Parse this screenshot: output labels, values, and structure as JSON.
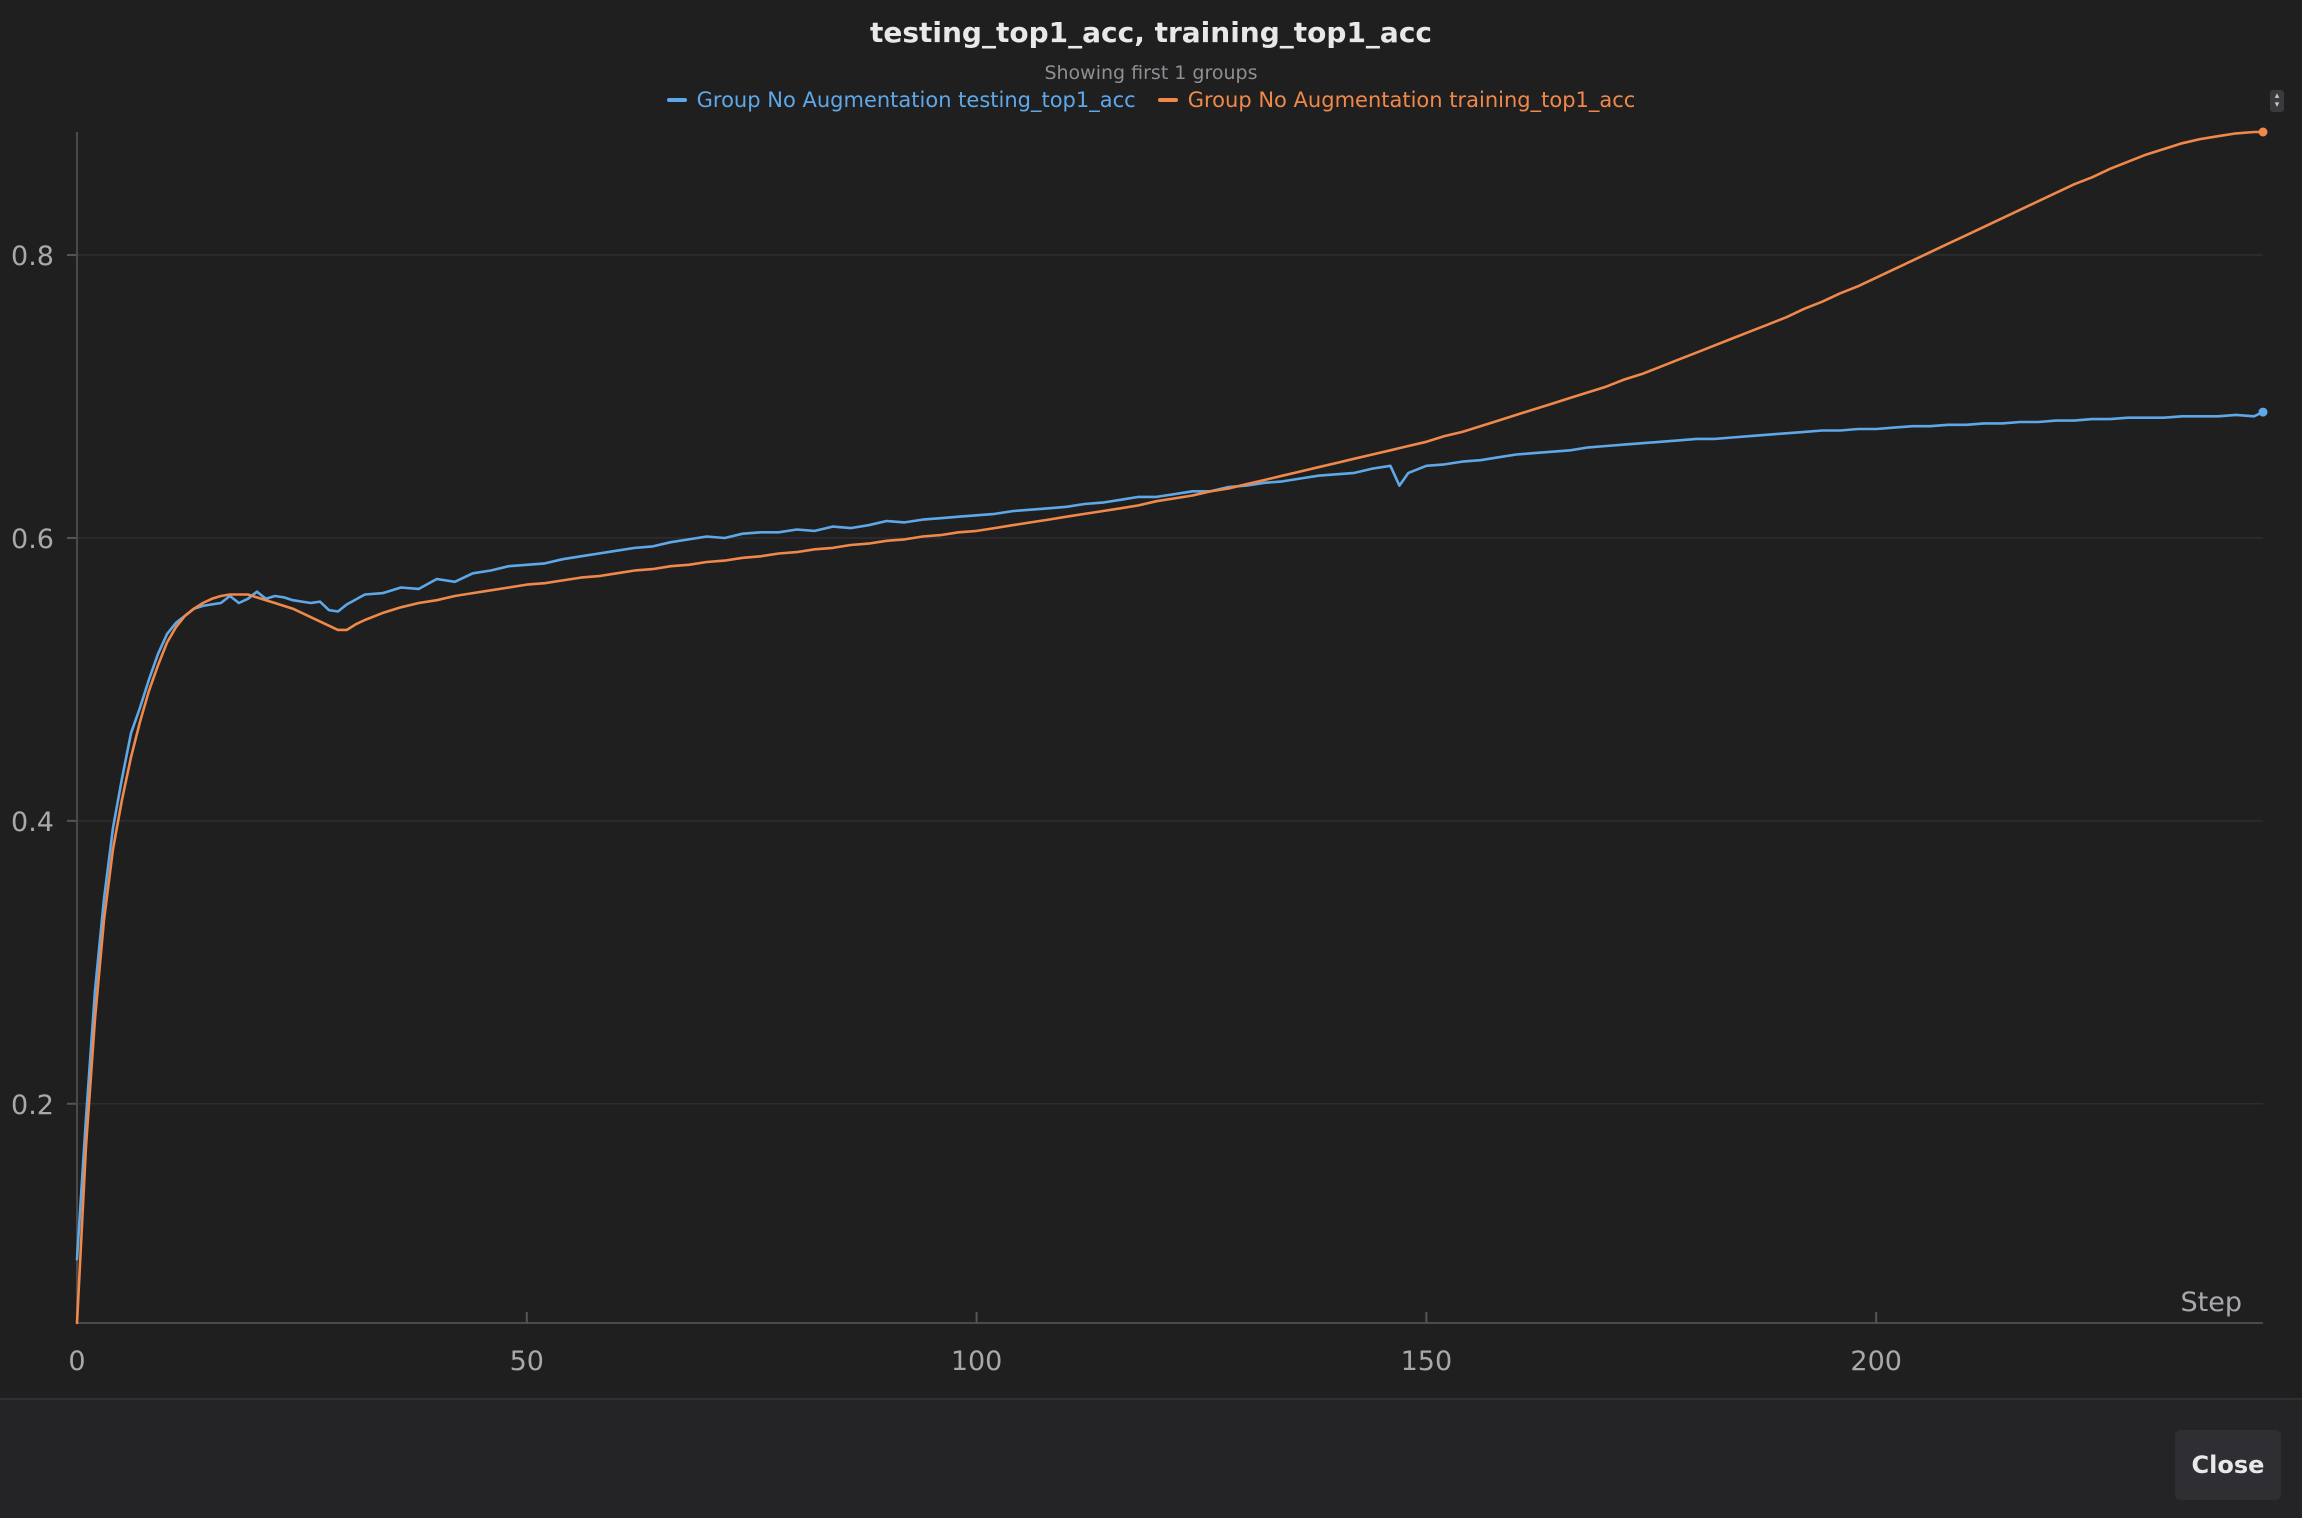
{
  "chart_data": {
    "type": "line",
    "title": "testing_top1_acc, training_top1_acc",
    "subtitle": "Showing first 1 groups",
    "xlabel": "Step",
    "ylabel": "",
    "xlim": [
      0,
      243
    ],
    "ylim": [
      0.045,
      0.887
    ],
    "x_ticks": [
      0,
      50,
      100,
      150,
      200
    ],
    "y_ticks": [
      0.2,
      0.4,
      0.6,
      0.8
    ],
    "x_tick_labels": [
      "0",
      "50",
      "100",
      "150",
      "200"
    ],
    "y_tick_labels": [
      "0.2",
      "0.4",
      "0.6",
      "0.8"
    ],
    "grid": "horizontal",
    "legend_position": "top",
    "series": [
      {
        "name": "Group No Augmentation testing_top1_acc",
        "color": "#5fa8e8",
        "points": [
          [
            0,
            0.09
          ],
          [
            1,
            0.19
          ],
          [
            2,
            0.28
          ],
          [
            3,
            0.345
          ],
          [
            4,
            0.395
          ],
          [
            5,
            0.43
          ],
          [
            6,
            0.462
          ],
          [
            7,
            0.48
          ],
          [
            8,
            0.5
          ],
          [
            9,
            0.518
          ],
          [
            10,
            0.532
          ],
          [
            11,
            0.54
          ],
          [
            12,
            0.545
          ],
          [
            13,
            0.55
          ],
          [
            14,
            0.552
          ],
          [
            15,
            0.553
          ],
          [
            16,
            0.554
          ],
          [
            17,
            0.559
          ],
          [
            18,
            0.554
          ],
          [
            19,
            0.557
          ],
          [
            20,
            0.562
          ],
          [
            21,
            0.557
          ],
          [
            22,
            0.559
          ],
          [
            23,
            0.558
          ],
          [
            24,
            0.556
          ],
          [
            25,
            0.555
          ],
          [
            26,
            0.554
          ],
          [
            27,
            0.555
          ],
          [
            28,
            0.549
          ],
          [
            29,
            0.548
          ],
          [
            30,
            0.553
          ],
          [
            32,
            0.56
          ],
          [
            34,
            0.561
          ],
          [
            36,
            0.565
          ],
          [
            38,
            0.564
          ],
          [
            40,
            0.571
          ],
          [
            42,
            0.569
          ],
          [
            44,
            0.575
          ],
          [
            46,
            0.577
          ],
          [
            48,
            0.58
          ],
          [
            50,
            0.581
          ],
          [
            52,
            0.582
          ],
          [
            54,
            0.585
          ],
          [
            56,
            0.587
          ],
          [
            58,
            0.589
          ],
          [
            60,
            0.591
          ],
          [
            62,
            0.593
          ],
          [
            64,
            0.594
          ],
          [
            66,
            0.597
          ],
          [
            68,
            0.599
          ],
          [
            70,
            0.601
          ],
          [
            72,
            0.6
          ],
          [
            74,
            0.603
          ],
          [
            76,
            0.604
          ],
          [
            78,
            0.604
          ],
          [
            80,
            0.606
          ],
          [
            82,
            0.605
          ],
          [
            84,
            0.608
          ],
          [
            86,
            0.607
          ],
          [
            88,
            0.609
          ],
          [
            90,
            0.612
          ],
          [
            92,
            0.611
          ],
          [
            94,
            0.613
          ],
          [
            96,
            0.614
          ],
          [
            98,
            0.615
          ],
          [
            100,
            0.616
          ],
          [
            102,
            0.617
          ],
          [
            104,
            0.619
          ],
          [
            106,
            0.62
          ],
          [
            108,
            0.621
          ],
          [
            110,
            0.622
          ],
          [
            112,
            0.624
          ],
          [
            114,
            0.625
          ],
          [
            116,
            0.627
          ],
          [
            118,
            0.629
          ],
          [
            120,
            0.629
          ],
          [
            122,
            0.631
          ],
          [
            124,
            0.633
          ],
          [
            126,
            0.633
          ],
          [
            128,
            0.636
          ],
          [
            130,
            0.637
          ],
          [
            132,
            0.639
          ],
          [
            134,
            0.64
          ],
          [
            136,
            0.642
          ],
          [
            138,
            0.644
          ],
          [
            140,
            0.645
          ],
          [
            142,
            0.646
          ],
          [
            144,
            0.649
          ],
          [
            146,
            0.651
          ],
          [
            147,
            0.637
          ],
          [
            148,
            0.646
          ],
          [
            150,
            0.651
          ],
          [
            152,
            0.652
          ],
          [
            154,
            0.654
          ],
          [
            156,
            0.655
          ],
          [
            158,
            0.657
          ],
          [
            160,
            0.659
          ],
          [
            162,
            0.66
          ],
          [
            164,
            0.661
          ],
          [
            166,
            0.662
          ],
          [
            168,
            0.664
          ],
          [
            170,
            0.665
          ],
          [
            172,
            0.666
          ],
          [
            174,
            0.667
          ],
          [
            176,
            0.668
          ],
          [
            178,
            0.669
          ],
          [
            180,
            0.67
          ],
          [
            182,
            0.67
          ],
          [
            184,
            0.671
          ],
          [
            186,
            0.672
          ],
          [
            188,
            0.673
          ],
          [
            190,
            0.674
          ],
          [
            192,
            0.675
          ],
          [
            194,
            0.676
          ],
          [
            196,
            0.676
          ],
          [
            198,
            0.677
          ],
          [
            200,
            0.677
          ],
          [
            202,
            0.678
          ],
          [
            204,
            0.679
          ],
          [
            206,
            0.679
          ],
          [
            208,
            0.68
          ],
          [
            210,
            0.68
          ],
          [
            212,
            0.681
          ],
          [
            214,
            0.681
          ],
          [
            216,
            0.682
          ],
          [
            218,
            0.682
          ],
          [
            220,
            0.683
          ],
          [
            222,
            0.683
          ],
          [
            224,
            0.684
          ],
          [
            226,
            0.684
          ],
          [
            228,
            0.685
          ],
          [
            230,
            0.685
          ],
          [
            232,
            0.685
          ],
          [
            234,
            0.686
          ],
          [
            236,
            0.686
          ],
          [
            238,
            0.686
          ],
          [
            240,
            0.687
          ],
          [
            242,
            0.686
          ],
          [
            243,
            0.689
          ]
        ]
      },
      {
        "name": "Group No Augmentation training_top1_acc",
        "color": "#f0884a",
        "points": [
          [
            0,
            0.045
          ],
          [
            1,
            0.17
          ],
          [
            2,
            0.26
          ],
          [
            3,
            0.33
          ],
          [
            4,
            0.38
          ],
          [
            5,
            0.415
          ],
          [
            6,
            0.445
          ],
          [
            7,
            0.47
          ],
          [
            8,
            0.492
          ],
          [
            9,
            0.51
          ],
          [
            10,
            0.526
          ],
          [
            11,
            0.537
          ],
          [
            12,
            0.545
          ],
          [
            13,
            0.55
          ],
          [
            14,
            0.554
          ],
          [
            15,
            0.557
          ],
          [
            16,
            0.559
          ],
          [
            17,
            0.56
          ],
          [
            18,
            0.56
          ],
          [
            19,
            0.56
          ],
          [
            20,
            0.558
          ],
          [
            21,
            0.556
          ],
          [
            22,
            0.554
          ],
          [
            23,
            0.552
          ],
          [
            24,
            0.55
          ],
          [
            25,
            0.547
          ],
          [
            26,
            0.544
          ],
          [
            27,
            0.541
          ],
          [
            28,
            0.538
          ],
          [
            29,
            0.535
          ],
          [
            30,
            0.535
          ],
          [
            31,
            0.539
          ],
          [
            32,
            0.542
          ],
          [
            34,
            0.547
          ],
          [
            36,
            0.551
          ],
          [
            38,
            0.554
          ],
          [
            40,
            0.556
          ],
          [
            42,
            0.559
          ],
          [
            44,
            0.561
          ],
          [
            46,
            0.563
          ],
          [
            48,
            0.565
          ],
          [
            50,
            0.567
          ],
          [
            52,
            0.568
          ],
          [
            54,
            0.57
          ],
          [
            56,
            0.572
          ],
          [
            58,
            0.573
          ],
          [
            60,
            0.575
          ],
          [
            62,
            0.577
          ],
          [
            64,
            0.578
          ],
          [
            66,
            0.58
          ],
          [
            68,
            0.581
          ],
          [
            70,
            0.583
          ],
          [
            72,
            0.584
          ],
          [
            74,
            0.586
          ],
          [
            76,
            0.587
          ],
          [
            78,
            0.589
          ],
          [
            80,
            0.59
          ],
          [
            82,
            0.592
          ],
          [
            84,
            0.593
          ],
          [
            86,
            0.595
          ],
          [
            88,
            0.596
          ],
          [
            90,
            0.598
          ],
          [
            92,
            0.599
          ],
          [
            94,
            0.601
          ],
          [
            96,
            0.602
          ],
          [
            98,
            0.604
          ],
          [
            100,
            0.605
          ],
          [
            102,
            0.607
          ],
          [
            104,
            0.609
          ],
          [
            106,
            0.611
          ],
          [
            108,
            0.613
          ],
          [
            110,
            0.615
          ],
          [
            112,
            0.617
          ],
          [
            114,
            0.619
          ],
          [
            116,
            0.621
          ],
          [
            118,
            0.623
          ],
          [
            120,
            0.626
          ],
          [
            122,
            0.628
          ],
          [
            124,
            0.63
          ],
          [
            126,
            0.633
          ],
          [
            128,
            0.635
          ],
          [
            130,
            0.638
          ],
          [
            132,
            0.641
          ],
          [
            134,
            0.644
          ],
          [
            136,
            0.647
          ],
          [
            138,
            0.65
          ],
          [
            140,
            0.653
          ],
          [
            142,
            0.656
          ],
          [
            144,
            0.659
          ],
          [
            146,
            0.662
          ],
          [
            148,
            0.665
          ],
          [
            150,
            0.668
          ],
          [
            152,
            0.672
          ],
          [
            154,
            0.675
          ],
          [
            156,
            0.679
          ],
          [
            158,
            0.683
          ],
          [
            160,
            0.687
          ],
          [
            162,
            0.691
          ],
          [
            164,
            0.695
          ],
          [
            166,
            0.699
          ],
          [
            168,
            0.703
          ],
          [
            170,
            0.707
          ],
          [
            172,
            0.712
          ],
          [
            174,
            0.716
          ],
          [
            176,
            0.721
          ],
          [
            178,
            0.726
          ],
          [
            180,
            0.731
          ],
          [
            182,
            0.736
          ],
          [
            184,
            0.741
          ],
          [
            186,
            0.746
          ],
          [
            188,
            0.751
          ],
          [
            190,
            0.756
          ],
          [
            192,
            0.762
          ],
          [
            194,
            0.767
          ],
          [
            196,
            0.773
          ],
          [
            198,
            0.778
          ],
          [
            200,
            0.784
          ],
          [
            202,
            0.79
          ],
          [
            204,
            0.796
          ],
          [
            206,
            0.802
          ],
          [
            208,
            0.808
          ],
          [
            210,
            0.814
          ],
          [
            212,
            0.82
          ],
          [
            214,
            0.826
          ],
          [
            216,
            0.832
          ],
          [
            218,
            0.838
          ],
          [
            220,
            0.844
          ],
          [
            222,
            0.85
          ],
          [
            224,
            0.855
          ],
          [
            226,
            0.861
          ],
          [
            228,
            0.866
          ],
          [
            230,
            0.871
          ],
          [
            232,
            0.875
          ],
          [
            234,
            0.879
          ],
          [
            236,
            0.882
          ],
          [
            238,
            0.884
          ],
          [
            240,
            0.886
          ],
          [
            242,
            0.887
          ],
          [
            243,
            0.887
          ]
        ]
      }
    ]
  },
  "footer": {
    "close_label": "Close"
  }
}
